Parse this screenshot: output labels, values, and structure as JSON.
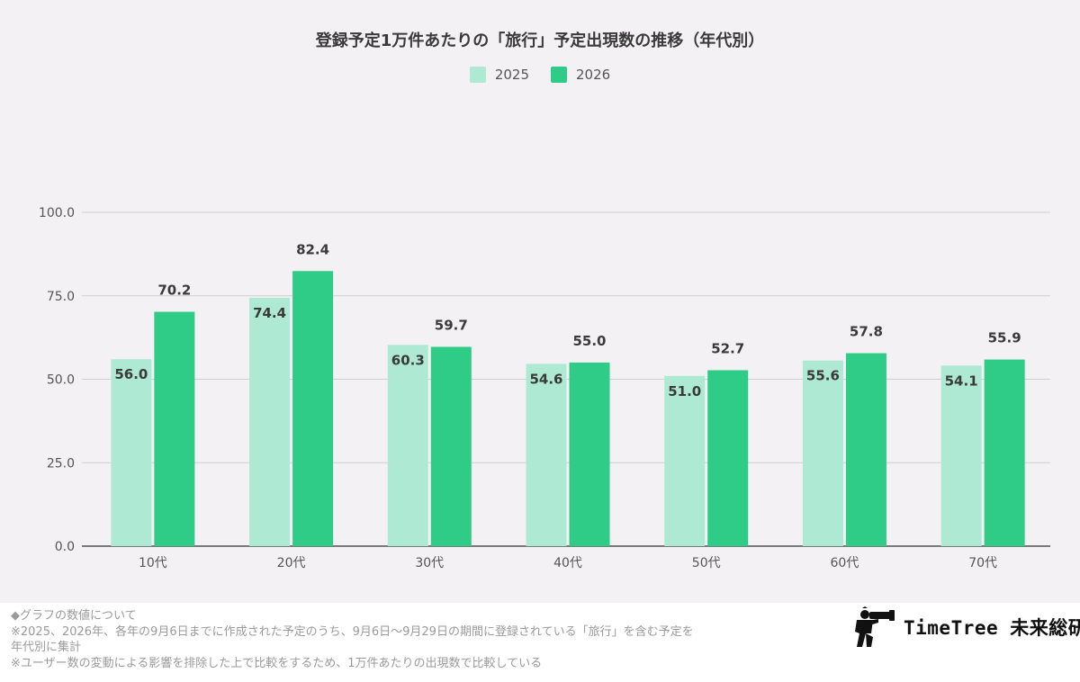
{
  "chart_data": {
    "type": "bar",
    "title": "登録予定1万件あたりの「旅行」予定出現数の推移（年代別）",
    "categories": [
      "10代",
      "20代",
      "30代",
      "40代",
      "50代",
      "60代",
      "70代"
    ],
    "series": [
      {
        "name": "2025",
        "color": "#aeead3",
        "values": [
          56.0,
          74.4,
          60.3,
          54.6,
          51.0,
          55.6,
          54.1
        ]
      },
      {
        "name": "2026",
        "color": "#2ecc87",
        "values": [
          70.2,
          82.4,
          59.7,
          55.0,
          52.7,
          57.8,
          55.9
        ]
      }
    ],
    "ylim": [
      0,
      100
    ],
    "yticks": [
      "0.0",
      "25.0",
      "50.0",
      "75.0",
      "100.0"
    ],
    "grid": true,
    "legend_position": "top-center"
  },
  "footer": {
    "notes": [
      "◆グラフの数値について",
      "※2025、2026年、各年の9月6日までに作成された予定のうち、9月6日〜9月29日の期間に登録されている「旅行」を含む予定を年代別に集計",
      "※ユーザー数の変動による影響を排除した上で比較をするため、1万件あたりの出現数で比較している"
    ],
    "logo_text": "TimeTree 未来総研",
    "logo_icon": "photographer-silhouette-icon"
  }
}
